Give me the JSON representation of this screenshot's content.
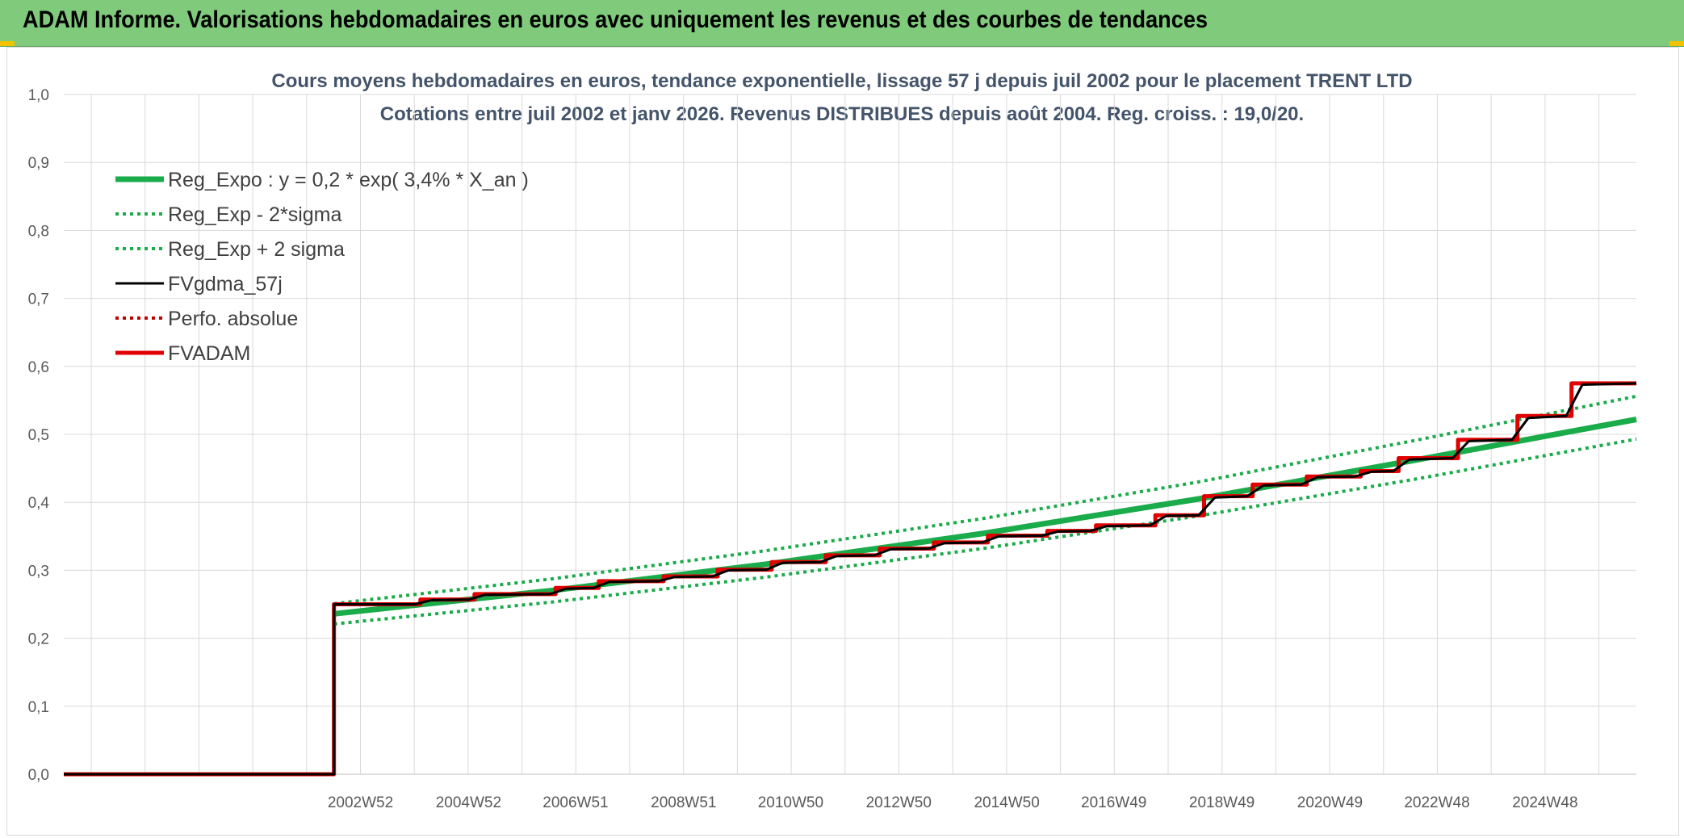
{
  "banner": {
    "title": "ADAM Informe. Valorisations hebdomadaires en euros avec uniquement les revenus et des courbes de tendances"
  },
  "colors": {
    "banner": "#7fcb7b",
    "reg": "#1aab4b",
    "price": "#000000",
    "adam": "#e00000",
    "perfo": "#c00000",
    "corner": "#f2c200"
  },
  "chart_data": {
    "type": "line",
    "title": "Cours moyens hebdomadaires en euros, tendance exponentielle, lissage 57 j depuis juil 2002 pour le placement TRENT LTD",
    "subtitle": "Cotations entre juil 2002 et janv 2026. Revenus DISTRIBUES depuis août 2004. Reg. croiss. : 19,0/20.",
    "xlabel": "",
    "ylabel": "",
    "ylim": [
      0,
      1
    ],
    "y_ticks": [
      "0,0",
      "0,1",
      "0,2",
      "0,3",
      "0,4",
      "0,5",
      "0,6",
      "0,7",
      "0,8",
      "0,9",
      "1,0"
    ],
    "x_range": [
      1997.5,
      2026.6
    ],
    "x_ticks": [
      {
        "label": "2002W52",
        "x": 2002.99
      },
      {
        "label": "2004W52",
        "x": 2004.99
      },
      {
        "label": "2006W51",
        "x": 2006.97
      },
      {
        "label": "2008W51",
        "x": 2008.97
      },
      {
        "label": "2010W50",
        "x": 2010.95
      },
      {
        "label": "2012W50",
        "x": 2012.95
      },
      {
        "label": "2014W50",
        "x": 2014.95
      },
      {
        "label": "2016W49",
        "x": 2016.93
      },
      {
        "label": "2018W49",
        "x": 2018.93
      },
      {
        "label": "2020W49",
        "x": 2020.93
      },
      {
        "label": "2022W48",
        "x": 2022.91
      },
      {
        "label": "2024W48",
        "x": 2024.91
      }
    ],
    "grid": true,
    "legend_position": "top-left",
    "series": [
      {
        "name": "Reg_Expo : y = 0,2 * exp( 3,4% *  X_an )",
        "style": "solid-thick",
        "color": "#1aab4b",
        "points": [
          [
            2002.5,
            0.236
          ],
          [
            2006.5,
            0.27
          ],
          [
            2010.5,
            0.309
          ],
          [
            2014.5,
            0.354
          ],
          [
            2018.5,
            0.405
          ],
          [
            2022.5,
            0.462
          ],
          [
            2026.6,
            0.522
          ]
        ]
      },
      {
        "name": "Reg_Exp - 2*sigma",
        "style": "dotted",
        "color": "#1aab4b",
        "points": [
          [
            2002.5,
            0.221
          ],
          [
            2006.5,
            0.253
          ],
          [
            2010.5,
            0.29
          ],
          [
            2014.5,
            0.332
          ],
          [
            2018.5,
            0.38
          ],
          [
            2022.5,
            0.434
          ],
          [
            2026.6,
            0.493
          ]
        ]
      },
      {
        "name": "Reg_Exp + 2 sigma",
        "style": "dotted",
        "color": "#1aab4b",
        "points": [
          [
            2002.5,
            0.251
          ],
          [
            2006.5,
            0.287
          ],
          [
            2010.5,
            0.329
          ],
          [
            2014.5,
            0.376
          ],
          [
            2018.5,
            0.43
          ],
          [
            2022.5,
            0.491
          ],
          [
            2026.6,
            0.556
          ]
        ]
      },
      {
        "name": "FVgdma_57j",
        "style": "solid",
        "color": "#000000",
        "points": [
          [
            1997.5,
            0.0
          ],
          [
            2002.5,
            0.0
          ],
          [
            2002.5,
            0.25
          ],
          [
            2004.0,
            0.25
          ],
          [
            2004.3,
            0.256
          ],
          [
            2005.0,
            0.257
          ],
          [
            2005.3,
            0.264
          ],
          [
            2006.5,
            0.265
          ],
          [
            2006.8,
            0.273
          ],
          [
            2007.3,
            0.274
          ],
          [
            2007.6,
            0.283
          ],
          [
            2008.5,
            0.284
          ],
          [
            2008.8,
            0.29
          ],
          [
            2009.5,
            0.291
          ],
          [
            2009.8,
            0.3
          ],
          [
            2010.5,
            0.301
          ],
          [
            2010.8,
            0.311
          ],
          [
            2011.5,
            0.312
          ],
          [
            2011.8,
            0.321
          ],
          [
            2012.5,
            0.322
          ],
          [
            2012.8,
            0.331
          ],
          [
            2013.5,
            0.332
          ],
          [
            2013.8,
            0.34
          ],
          [
            2014.5,
            0.341
          ],
          [
            2014.8,
            0.35
          ],
          [
            2015.6,
            0.351
          ],
          [
            2015.9,
            0.357
          ],
          [
            2016.5,
            0.358
          ],
          [
            2016.8,
            0.365
          ],
          [
            2017.6,
            0.366
          ],
          [
            2017.9,
            0.38
          ],
          [
            2018.5,
            0.381
          ],
          [
            2018.8,
            0.407
          ],
          [
            2019.4,
            0.409
          ],
          [
            2019.7,
            0.425
          ],
          [
            2020.4,
            0.426
          ],
          [
            2020.7,
            0.437
          ],
          [
            2021.4,
            0.438
          ],
          [
            2021.7,
            0.445
          ],
          [
            2022.1,
            0.446
          ],
          [
            2022.4,
            0.463
          ],
          [
            2023.2,
            0.465
          ],
          [
            2023.5,
            0.49
          ],
          [
            2024.3,
            0.492
          ],
          [
            2024.6,
            0.524
          ],
          [
            2025.3,
            0.527
          ],
          [
            2025.6,
            0.573
          ],
          [
            2026.6,
            0.575
          ]
        ]
      },
      {
        "name": "Perfo. absolue",
        "style": "dotted",
        "color": "#c00000",
        "points": []
      },
      {
        "name": "FVADAM",
        "style": "step-thick",
        "color": "#e00000",
        "points": [
          [
            1997.5,
            0.0
          ],
          [
            2002.5,
            0.0
          ],
          [
            2002.5,
            0.25
          ],
          [
            2004.1,
            0.25
          ],
          [
            2004.1,
            0.257
          ],
          [
            2005.1,
            0.257
          ],
          [
            2005.1,
            0.265
          ],
          [
            2006.6,
            0.265
          ],
          [
            2006.6,
            0.274
          ],
          [
            2007.4,
            0.274
          ],
          [
            2007.4,
            0.284
          ],
          [
            2008.6,
            0.284
          ],
          [
            2008.6,
            0.291
          ],
          [
            2009.6,
            0.291
          ],
          [
            2009.6,
            0.301
          ],
          [
            2010.6,
            0.301
          ],
          [
            2010.6,
            0.312
          ],
          [
            2011.6,
            0.312
          ],
          [
            2011.6,
            0.322
          ],
          [
            2012.6,
            0.322
          ],
          [
            2012.6,
            0.332
          ],
          [
            2013.6,
            0.332
          ],
          [
            2013.6,
            0.341
          ],
          [
            2014.6,
            0.341
          ],
          [
            2014.6,
            0.351
          ],
          [
            2015.7,
            0.351
          ],
          [
            2015.7,
            0.358
          ],
          [
            2016.6,
            0.358
          ],
          [
            2016.6,
            0.366
          ],
          [
            2017.7,
            0.366
          ],
          [
            2017.7,
            0.381
          ],
          [
            2018.6,
            0.381
          ],
          [
            2018.6,
            0.409
          ],
          [
            2019.5,
            0.409
          ],
          [
            2019.5,
            0.426
          ],
          [
            2020.5,
            0.426
          ],
          [
            2020.5,
            0.438
          ],
          [
            2021.5,
            0.438
          ],
          [
            2021.5,
            0.446
          ],
          [
            2022.2,
            0.446
          ],
          [
            2022.2,
            0.465
          ],
          [
            2023.3,
            0.465
          ],
          [
            2023.3,
            0.492
          ],
          [
            2024.4,
            0.492
          ],
          [
            2024.4,
            0.527
          ],
          [
            2025.4,
            0.527
          ],
          [
            2025.4,
            0.575
          ],
          [
            2026.6,
            0.575
          ]
        ]
      }
    ]
  }
}
